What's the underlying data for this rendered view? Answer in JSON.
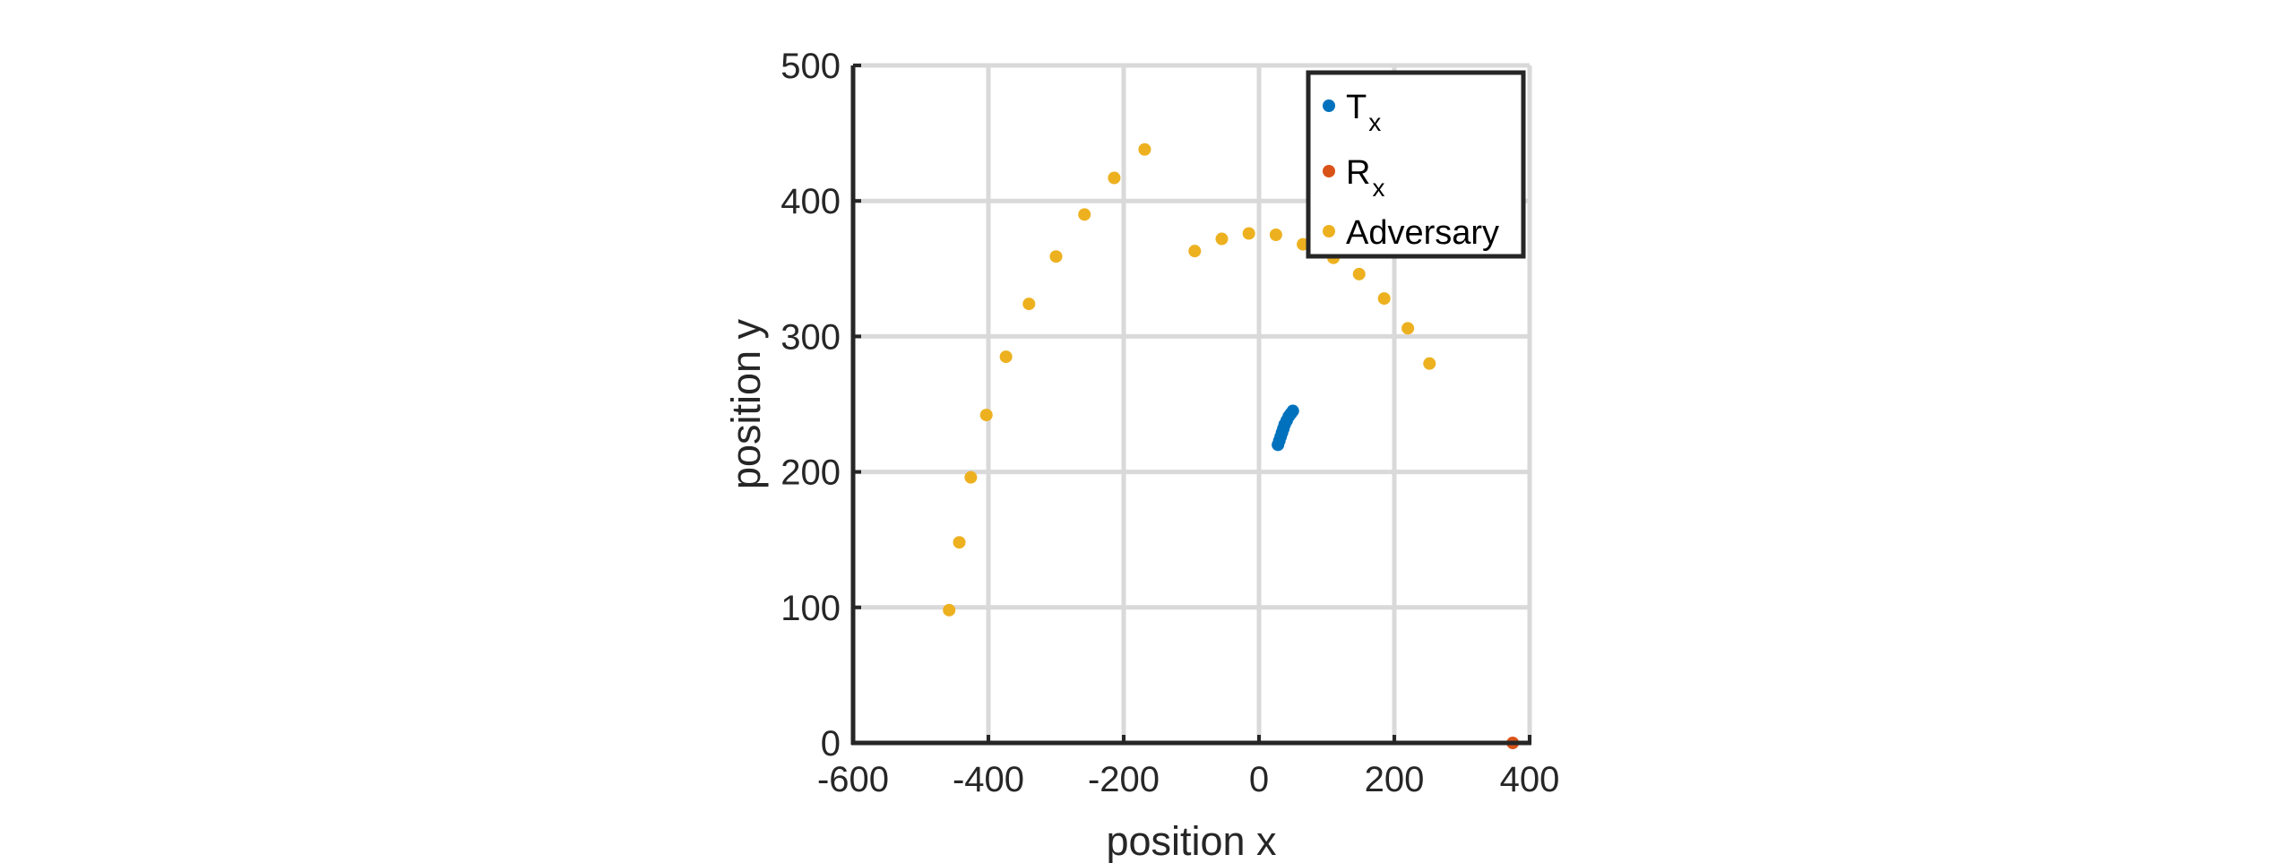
{
  "chart_data": {
    "type": "scatter",
    "xlabel": "position x",
    "ylabel": "position y",
    "xlim": [
      -600,
      400
    ],
    "ylim": [
      0,
      500
    ],
    "xticks": [
      "-600",
      "-400",
      "-200",
      "0",
      "200",
      "400"
    ],
    "yticks": [
      "0",
      "100",
      "200",
      "300",
      "400",
      "500"
    ],
    "grid": true,
    "legend": {
      "placement": "top-right",
      "entries": [
        {
          "main": "T",
          "sub": "x",
          "color": "#0072BD"
        },
        {
          "main": "R",
          "sub": "x",
          "color": "#D95319"
        },
        {
          "main": "Adversary",
          "sub": "",
          "color": "#EDB120"
        }
      ]
    },
    "series": [
      {
        "name": "Tx",
        "color": "#0072BD",
        "points": [
          [
            28,
            220
          ],
          [
            30,
            223
          ],
          [
            32,
            226
          ],
          [
            34,
            229
          ],
          [
            36,
            232
          ],
          [
            38,
            235
          ],
          [
            41,
            238
          ],
          [
            44,
            241
          ],
          [
            47,
            243
          ],
          [
            50,
            245
          ]
        ]
      },
      {
        "name": "Rx",
        "color": "#D95319",
        "points": [
          [
            375,
            0
          ]
        ]
      },
      {
        "name": "Adversary",
        "color": "#EDB120",
        "points": [
          [
            -458,
            98
          ],
          [
            -443,
            148
          ],
          [
            -426,
            196
          ],
          [
            -403,
            242
          ],
          [
            -374,
            285
          ],
          [
            -340,
            324
          ],
          [
            -300,
            359
          ],
          [
            -258,
            390
          ],
          [
            -214,
            417
          ],
          [
            -169,
            438
          ],
          [
            -95,
            363
          ],
          [
            -55,
            372
          ],
          [
            -15,
            376
          ],
          [
            25,
            375
          ],
          [
            65,
            368
          ],
          [
            110,
            358
          ],
          [
            148,
            346
          ],
          [
            185,
            328
          ],
          [
            220,
            306
          ],
          [
            252,
            280
          ]
        ]
      }
    ]
  }
}
